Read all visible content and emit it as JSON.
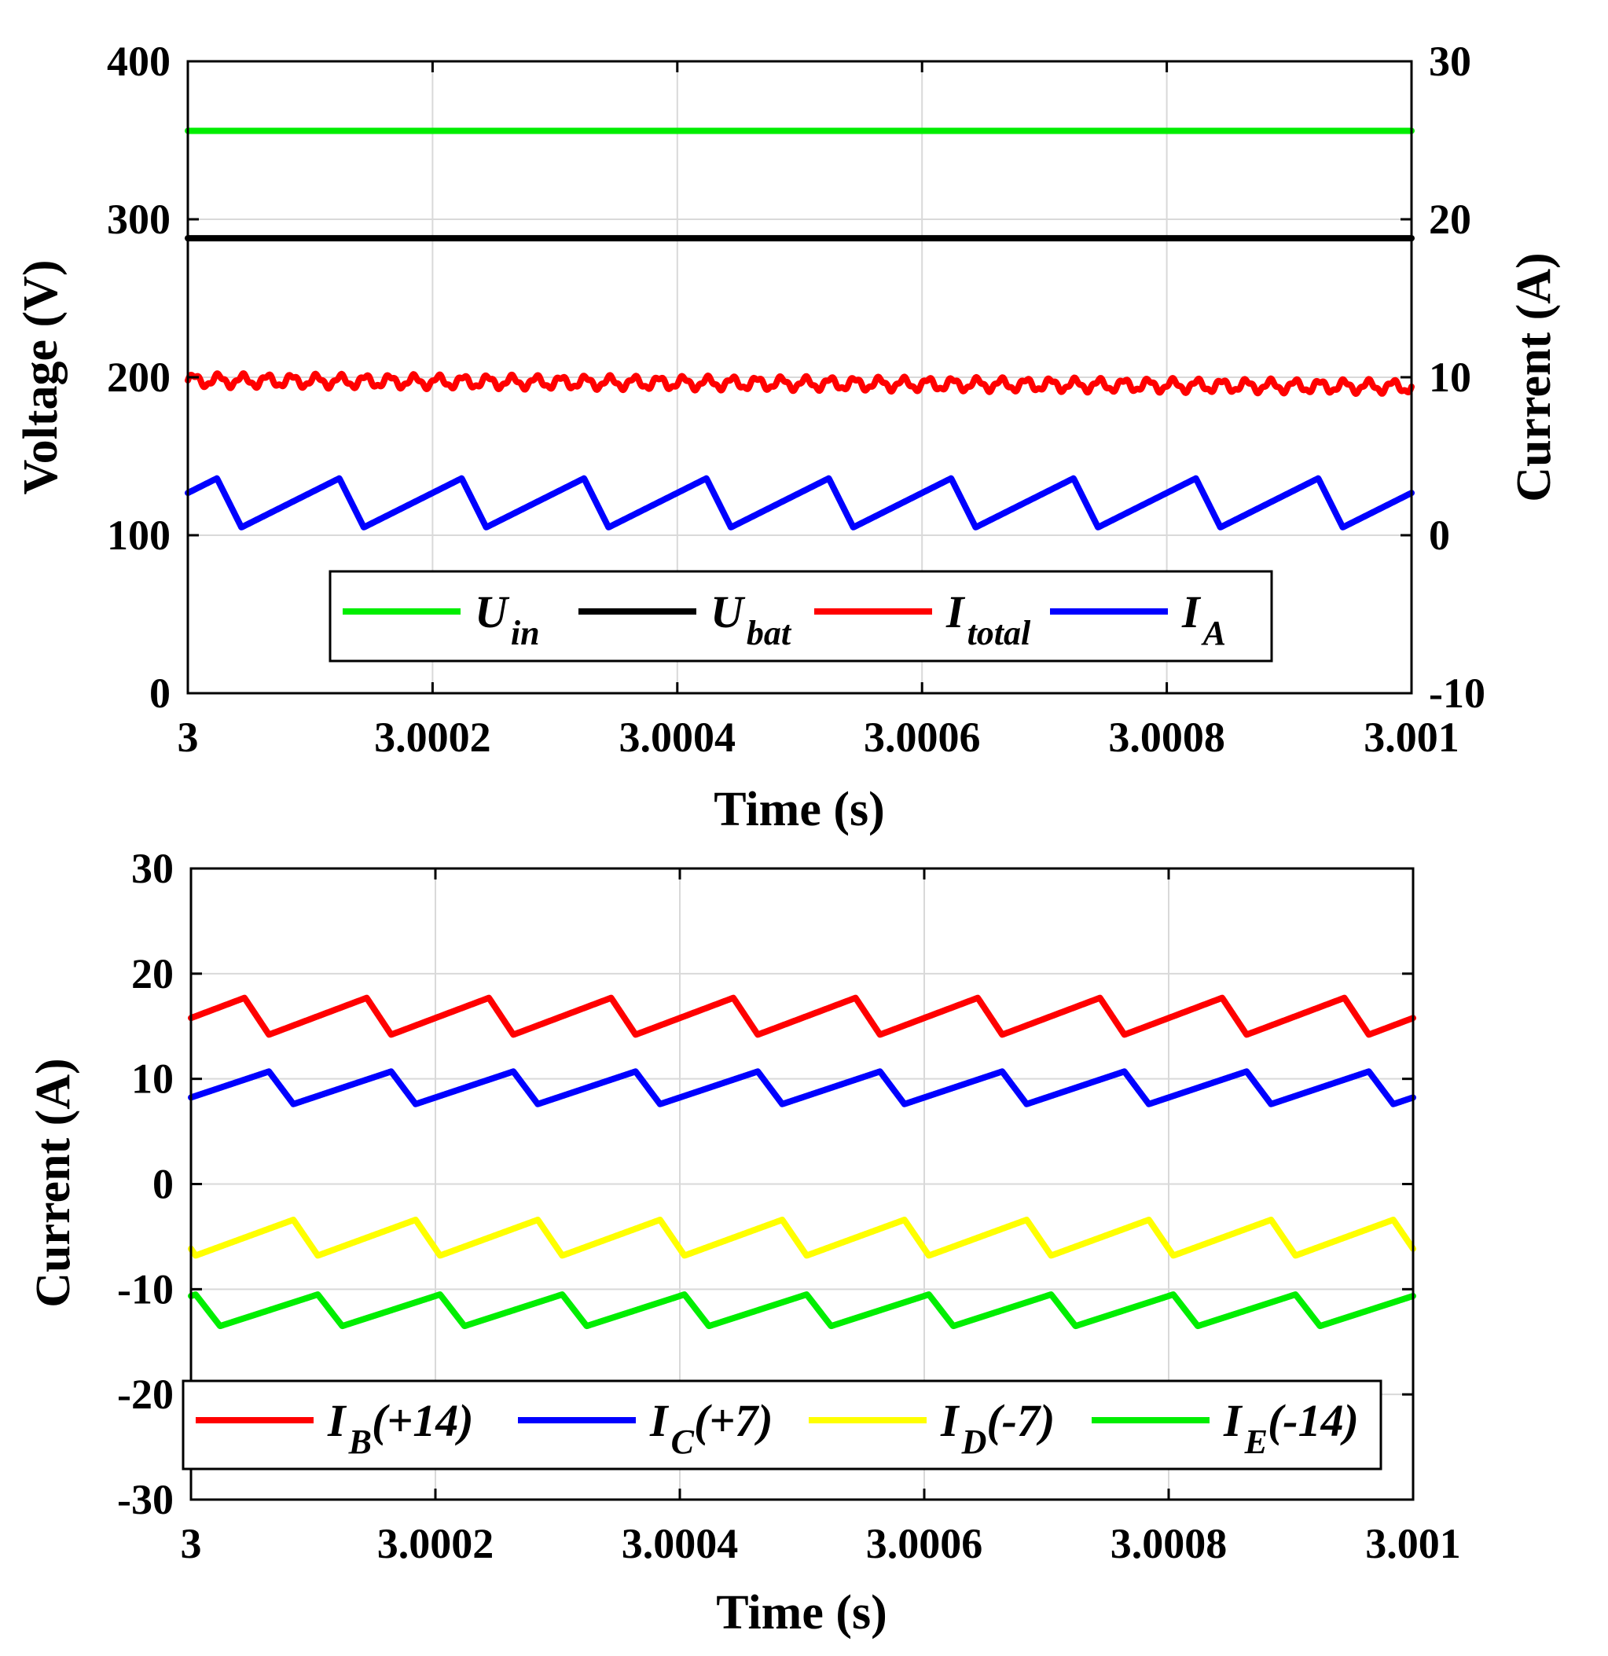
{
  "chart_data": [
    {
      "type": "line",
      "x": {
        "label": "Time (s)",
        "lim": [
          3,
          3.001
        ],
        "ticks": [
          3,
          3.0002,
          3.0004,
          3.0006,
          3.0008,
          3.001
        ],
        "tick_labels": [
          "3",
          "3.0002",
          "3.0004",
          "3.0006",
          "3.0008",
          "3.001"
        ]
      },
      "y_left": {
        "label": "Voltage (V)",
        "lim": [
          0,
          400
        ],
        "ticks": [
          0,
          100,
          200,
          300,
          400
        ],
        "tick_labels": [
          "0",
          "100",
          "200",
          "300",
          "400"
        ]
      },
      "y_right": {
        "label": "Current (A)",
        "lim": [
          -10,
          30
        ],
        "ticks": [
          -10,
          0,
          10,
          20,
          30
        ],
        "tick_labels": [
          "-10",
          "0",
          "10",
          "20",
          "30"
        ]
      },
      "grid": true,
      "legend_position": "bottom-center",
      "series": [
        {
          "name": "U",
          "sub": "in",
          "color": "#00ee00",
          "axis": "left",
          "kind": "constant",
          "value": 356
        },
        {
          "name": "U",
          "sub": "bat",
          "color": "#000000",
          "axis": "left",
          "kind": "constant",
          "value": 288
        },
        {
          "name": "I",
          "sub": "total",
          "color": "#ff0000",
          "axis": "right",
          "kind": "ripple",
          "mean": 9.8,
          "amplitude": 0.35,
          "drift": -0.4
        },
        {
          "name": "I",
          "sub": "A",
          "color": "#0000ff",
          "axis": "right",
          "kind": "sawtooth",
          "min": 0.5,
          "max": 3.6,
          "period": 0.0001,
          "phase": 4.38e-05
        }
      ]
    },
    {
      "type": "line",
      "x": {
        "label": "Time (s)",
        "lim": [
          3,
          3.001
        ],
        "ticks": [
          3,
          3.0002,
          3.0004,
          3.0006,
          3.0008,
          3.001
        ],
        "tick_labels": [
          "3",
          "3.0002",
          "3.0004",
          "3.0006",
          "3.0008",
          "3.001"
        ]
      },
      "y_left": {
        "label": "Current (A)",
        "lim": [
          -30,
          30
        ],
        "ticks": [
          -30,
          -20,
          -10,
          0,
          10,
          20,
          30
        ],
        "tick_labels": [
          "-30",
          "-20",
          "-10",
          "0",
          "10",
          "20",
          "30"
        ]
      },
      "grid": true,
      "legend_position": "bottom",
      "series": [
        {
          "name": "I",
          "sub": "B",
          "suffix": "(+14)",
          "color": "#ff0000",
          "kind": "sawtooth",
          "min": 14.2,
          "max": 17.7,
          "period": 0.0001,
          "phase": 6.38e-05
        },
        {
          "name": "I",
          "sub": "C",
          "suffix": "(+7)",
          "color": "#0000ff",
          "kind": "sawtooth",
          "min": 7.6,
          "max": 10.7,
          "period": 0.0001,
          "phase": 8.38e-05
        },
        {
          "name": "I",
          "sub": "D",
          "suffix": "(-7)",
          "color": "#ffff00",
          "kind": "sawtooth",
          "min": -6.8,
          "max": -3.4,
          "period": 0.0001,
          "phase": 3.8e-06
        },
        {
          "name": "I",
          "sub": "E",
          "suffix": "(-14)",
          "color": "#00ee00",
          "kind": "sawtooth",
          "min": -13.5,
          "max": -10.5,
          "period": 0.0001,
          "phase": 2.38e-05
        }
      ]
    }
  ]
}
